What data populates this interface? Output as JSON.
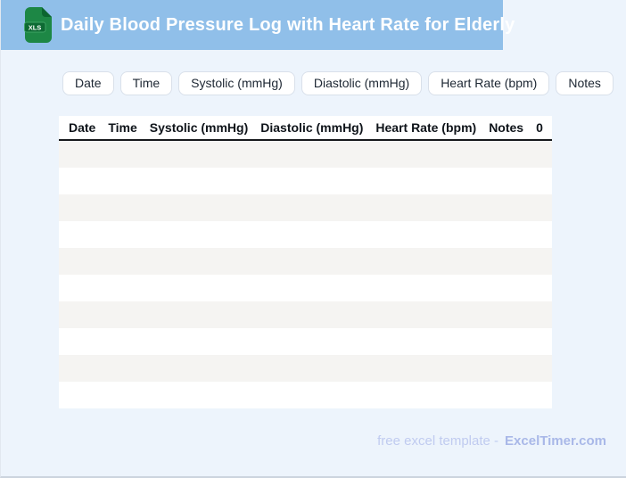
{
  "banner": {
    "title": "Daily Blood Pressure Log with Heart Rate for Elderly",
    "file_badge": "XLS"
  },
  "chips": {
    "items": [
      "Date",
      "Time",
      "Systolic (mmHg)",
      "Diastolic (mmHg)",
      "Heart Rate (bpm)",
      "Notes"
    ]
  },
  "table": {
    "columns": [
      "Date",
      "Time",
      "Systolic (mmHg)",
      "Diastolic (mmHg)",
      "Heart Rate (bpm)",
      "Notes",
      "0"
    ],
    "empty_row_count": 10,
    "rows": []
  },
  "footer": {
    "label": "free excel template -",
    "brand": "ExcelTimer.com"
  },
  "colors": {
    "banner_bg": "#90bfe9",
    "page_bg": "#edf4fc",
    "row_stripe": "#f5f4f2",
    "row_alt": "#ffffff",
    "chip_border": "#d9e0ea",
    "header_rule": "#17191c",
    "icon_green": "#1d8745",
    "icon_green_dark": "#0c6530",
    "icon_badge_green": "#0d6a33",
    "footer_text": "#c0cbf0",
    "footer_brand": "#a9b8e8",
    "title_text": "#ffffff"
  }
}
